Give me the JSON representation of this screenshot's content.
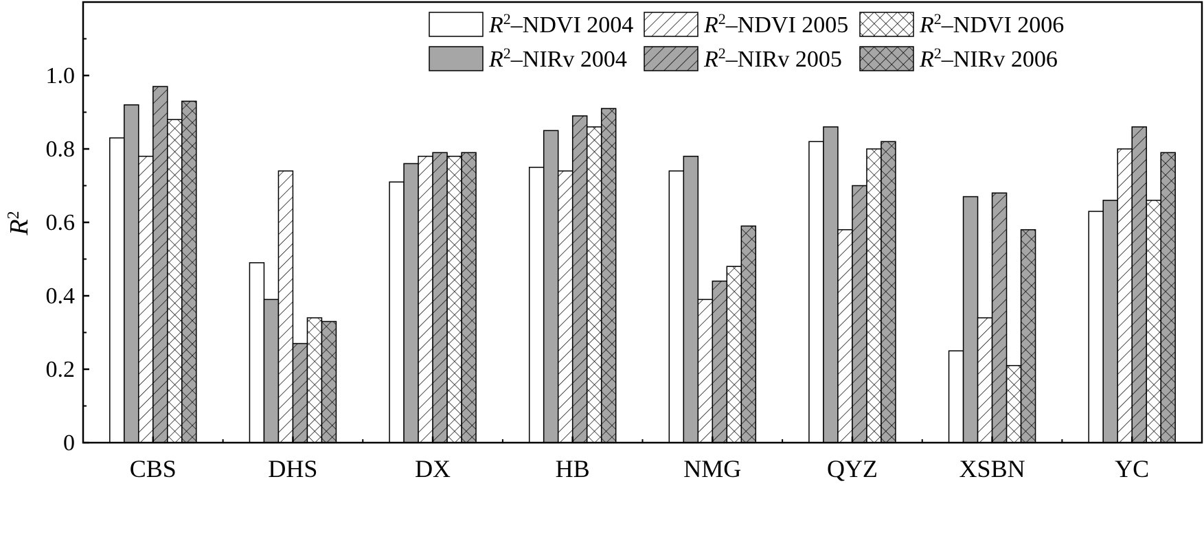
{
  "chart_data": {
    "type": "bar",
    "title": "",
    "xlabel": "",
    "ylabel": "R",
    "ylabel_superscript": "2",
    "ylim": [
      0,
      1.2
    ],
    "yticks": [
      0,
      0.2,
      0.4,
      0.6,
      0.8,
      1.0
    ],
    "ytick_labels": [
      "0",
      "0.2",
      "0.4",
      "0.6",
      "0.8",
      "1.0"
    ],
    "grid": false,
    "legend_position": "top-right",
    "categories": [
      "CBS",
      "DHS",
      "DX",
      "HB",
      "NMG",
      "QYZ",
      "XSBN",
      "YC"
    ],
    "series": [
      {
        "name": "R2–NDVI 2004",
        "legend_main": "R",
        "legend_sup": "2",
        "legend_rest": "–NDVI 2004",
        "fill": "#ffffff",
        "pattern": "none",
        "values": [
          0.83,
          0.49,
          0.71,
          0.75,
          0.74,
          0.82,
          0.25,
          0.63
        ]
      },
      {
        "name": "R2–NIRv 2004",
        "legend_main": "R",
        "legend_sup": "2",
        "legend_rest": "–NIRv 2004",
        "fill": "#a6a6a6",
        "pattern": "none",
        "values": [
          0.92,
          0.39,
          0.76,
          0.85,
          0.78,
          0.86,
          0.67,
          0.66
        ]
      },
      {
        "name": "R2–NDVI 2005",
        "legend_main": "R",
        "legend_sup": "2",
        "legend_rest": "–NDVI 2005",
        "fill": "#ffffff",
        "pattern": "diag",
        "values": [
          0.78,
          0.74,
          0.78,
          0.74,
          0.39,
          0.58,
          0.34,
          0.8
        ]
      },
      {
        "name": "R2–NIRv 2005",
        "legend_main": "R",
        "legend_sup": "2",
        "legend_rest": "–NIRv 2005",
        "fill": "#a6a6a6",
        "pattern": "diag",
        "values": [
          0.97,
          0.27,
          0.79,
          0.89,
          0.44,
          0.7,
          0.68,
          0.86
        ]
      },
      {
        "name": "R2–NDVI 2006",
        "legend_main": "R",
        "legend_sup": "2",
        "legend_rest": "–NDVI 2006",
        "fill": "#ffffff",
        "pattern": "cross",
        "values": [
          0.88,
          0.34,
          0.78,
          0.86,
          0.48,
          0.8,
          0.21,
          0.66
        ]
      },
      {
        "name": "R2–NIRv 2006",
        "legend_main": "R",
        "legend_sup": "2",
        "legend_rest": "–NIRv 2006",
        "fill": "#a6a6a6",
        "pattern": "cross",
        "values": [
          0.93,
          0.33,
          0.79,
          0.91,
          0.59,
          0.82,
          0.58,
          0.79
        ]
      }
    ]
  }
}
